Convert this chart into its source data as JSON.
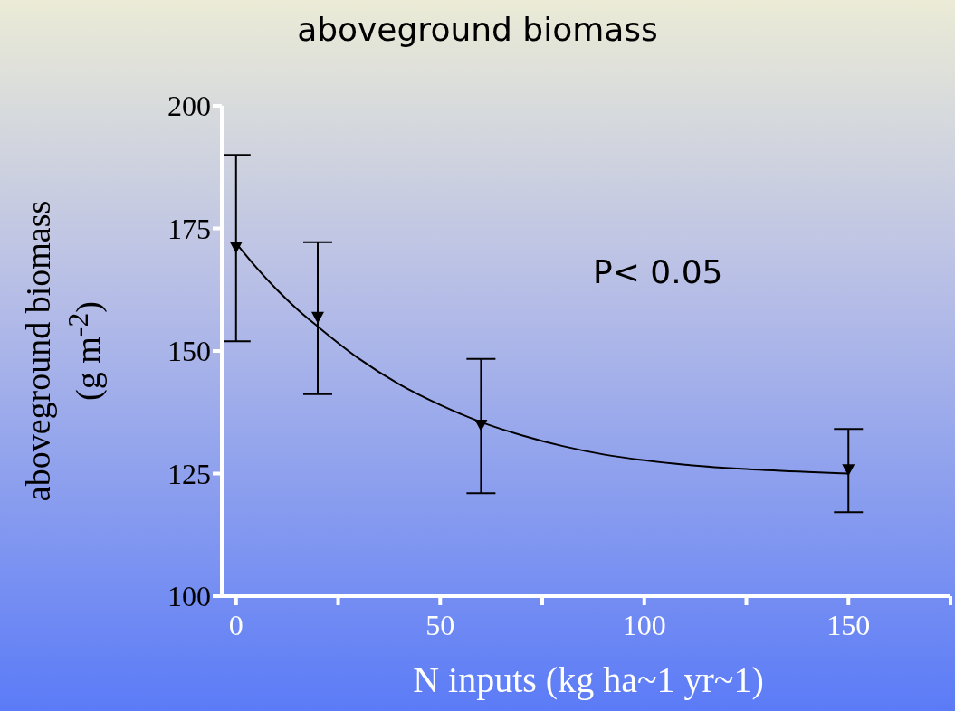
{
  "chart_data": {
    "type": "scatter",
    "title": "aboveground biomass",
    "xlabel": "N inputs (kg ha~1 yr~1)",
    "ylabel": "aboveground biomass\n(g m$^{-2}$)",
    "annotations": [
      "P< 0.05"
    ],
    "xlim": [
      -3.5,
      175
    ],
    "xticks": [
      0,
      {
        "value": 25,
        "label": null
      },
      50,
      {
        "value": 75,
        "label": null
      },
      100,
      {
        "value": 125,
        "label": null
      },
      150,
      {
        "value": 175,
        "label": null
      }
    ],
    "ylim": [
      100,
      200
    ],
    "yticks": [
      100,
      125,
      150,
      175,
      200
    ],
    "grid": false,
    "legend": false,
    "marker": "triangle",
    "series": [
      {
        "color": "#000000",
        "x": [
          0,
          20,
          60,
          150
        ],
        "values": [
          171,
          156.7,
          134.7,
          125.6
        ],
        "errors": [
          19,
          15.5,
          13.7,
          8.5
        ]
      },
      {
        "type": "line",
        "color": "#000000",
        "marker": "none",
        "x": [
          0,
          5,
          10,
          15,
          20,
          30,
          40,
          50,
          60,
          70,
          80,
          90,
          100,
          110,
          125,
          140,
          150
        ],
        "values": [
          172,
          167,
          162.5,
          158.5,
          155,
          148.5,
          143.2,
          139,
          135.5,
          132.8,
          130.6,
          128.9,
          127.7,
          126.8,
          125.9,
          125.3,
          125
        ]
      }
    ]
  }
}
